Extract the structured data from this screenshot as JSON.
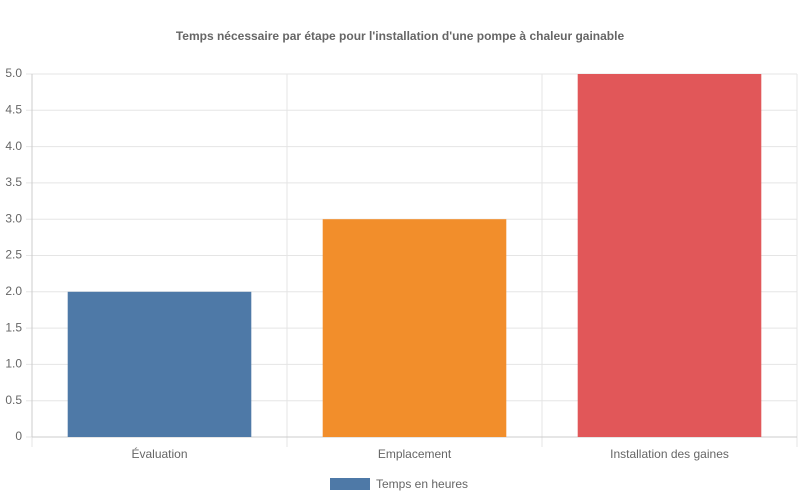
{
  "chart_data": {
    "type": "bar",
    "title": "Temps nécessaire par étape pour l'installation d'une pompe à chaleur gainable",
    "categories": [
      "Évaluation",
      "Emplacement",
      "Installation des gaines"
    ],
    "series": [
      {
        "name": "Temps en heures",
        "color": "#4e79a7",
        "values": [
          2,
          3,
          5
        ]
      }
    ],
    "bar_colors": [
      "#4e79a7",
      "#f28e2b",
      "#e15759"
    ],
    "ylim": [
      0,
      5
    ],
    "yticks": [
      0,
      0.5,
      {
        "value": 1,
        "label": "1.0"
      },
      1.5,
      {
        "value": 2,
        "label": "2.0"
      },
      2.5,
      {
        "value": 3,
        "label": "3.0"
      },
      3.5,
      {
        "value": 4,
        "label": "4.0"
      },
      4.5,
      {
        "value": 5,
        "label": "5.0"
      }
    ],
    "grid": true,
    "legend": "bottom"
  }
}
